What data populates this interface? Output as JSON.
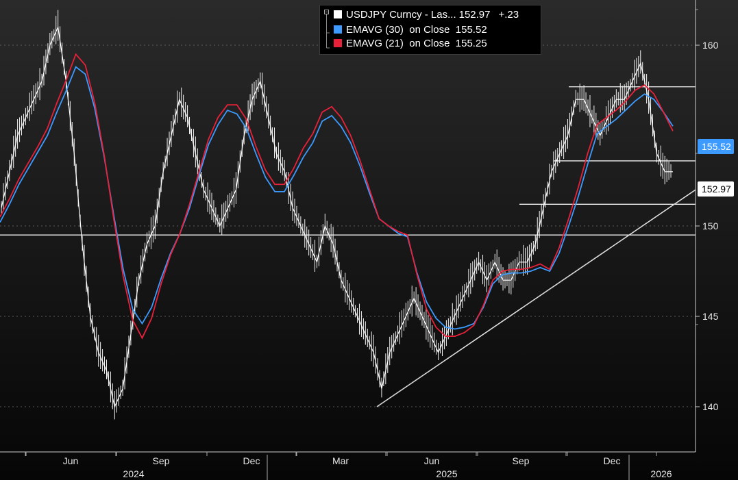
{
  "chart_data": {
    "type": "line",
    "title": "",
    "x_ticks": [
      "Jun",
      "Sep",
      "Dec",
      "Mar",
      "Jun",
      "Sep",
      "Dec"
    ],
    "year_labels": [
      "2024",
      "2025",
      "2026"
    ],
    "y_ticks": [
      140,
      145,
      150,
      160
    ],
    "ylim": [
      137.5,
      162.5
    ],
    "series": [
      {
        "name": "USDJPY Curncy - Las...",
        "color": "#ffffff",
        "last": "152.97",
        "change": "+.23",
        "values": [
          151,
          153,
          155,
          156,
          157,
          158,
          160,
          161,
          158,
          154,
          149,
          145,
          143,
          142,
          140,
          141,
          144,
          147,
          149,
          150,
          153,
          155,
          157,
          156,
          154,
          152,
          151,
          150,
          151,
          152,
          155,
          157,
          158,
          156,
          154,
          153,
          151,
          150,
          149,
          148,
          150,
          149,
          147,
          146,
          145,
          144,
          143,
          141,
          143,
          144,
          145,
          146,
          145,
          144,
          143,
          144,
          145,
          146,
          147,
          148,
          147,
          148,
          147,
          147,
          148,
          148,
          149,
          151,
          153,
          154,
          155,
          157,
          157,
          156,
          155,
          156,
          157,
          157,
          158,
          159,
          157,
          154,
          153,
          153
        ]
      },
      {
        "name": "EMAVG (30)",
        "color": "#3d9bff",
        "last": "155.52",
        "values": [
          150.2,
          151.2,
          152.3,
          153.2,
          154.1,
          155.0,
          156.3,
          157.5,
          158.8,
          158.4,
          156.5,
          153.8,
          150.6,
          147.6,
          145.4,
          144.6,
          145.5,
          147.1,
          148.5,
          149.6,
          151.0,
          152.8,
          154.5,
          155.6,
          156.4,
          156.2,
          155.4,
          154.0,
          152.7,
          151.9,
          151.9,
          152.8,
          153.8,
          154.6,
          155.8,
          156.1,
          155.5,
          154.6,
          153.3,
          151.8,
          150.4,
          150.0,
          149.6,
          149.4,
          147.4,
          145.8,
          144.9,
          144.4,
          144.3,
          144.4,
          144.6,
          145.5,
          146.8,
          147.3,
          147.4,
          147.4,
          147.5,
          147.7,
          147.5,
          148.5,
          150.0,
          151.6,
          153.4,
          155.1,
          155.5,
          155.9,
          156.4,
          156.9,
          157.3,
          157.0,
          156.3,
          155.52
        ]
      },
      {
        "name": "EMAVG (21)",
        "color": "#e8213a",
        "last": "155.25",
        "values": [
          150.5,
          151.5,
          152.6,
          153.5,
          154.4,
          155.4,
          156.8,
          158.1,
          159.5,
          158.9,
          156.8,
          153.9,
          150.4,
          147.2,
          144.8,
          143.8,
          144.9,
          146.8,
          148.4,
          149.6,
          151.2,
          153.0,
          154.8,
          156.0,
          156.7,
          156.7,
          155.9,
          154.4,
          153.1,
          152.3,
          152.3,
          153.2,
          154.3,
          155.1,
          156.3,
          156.6,
          156.0,
          155.0,
          153.6,
          152.0,
          150.4,
          150.0,
          149.7,
          149.5,
          147.3,
          145.4,
          144.4,
          143.9,
          143.9,
          144.1,
          144.5,
          145.6,
          147.0,
          147.5,
          147.6,
          147.6,
          147.7,
          147.9,
          147.6,
          148.8,
          150.4,
          152.1,
          154.0,
          155.6,
          156.0,
          156.4,
          156.9,
          157.5,
          157.8,
          157.3,
          156.3,
          155.25
        ]
      }
    ],
    "annotations": {
      "horizontal_lines": [
        149.5,
        151.2,
        153.6,
        157.7
      ],
      "trendline": {
        "from": 140.0,
        "to": 152.0
      }
    },
    "price_tags": [
      {
        "value": "155.52",
        "style": "blue"
      },
      {
        "value": "152.97",
        "style": "white"
      }
    ]
  }
}
